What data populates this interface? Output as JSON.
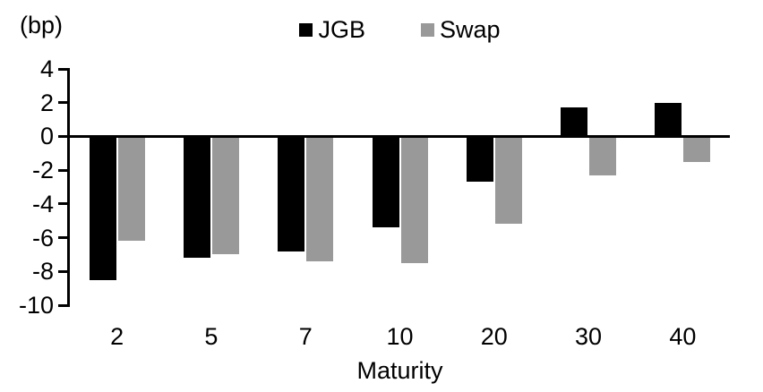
{
  "chart_data": {
    "type": "bar",
    "title": "",
    "unit_label": "(bp)",
    "xlabel": "Maturity",
    "ylabel": "",
    "categories": [
      "2",
      "5",
      "7",
      "10",
      "20",
      "30",
      "40"
    ],
    "series": [
      {
        "name": "JGB",
        "color": "#000000",
        "values": [
          -8.5,
          -7.2,
          -6.8,
          -5.4,
          -2.7,
          1.7,
          2.0
        ]
      },
      {
        "name": "Swap",
        "color": "#999999",
        "values": [
          -6.2,
          -7.0,
          -7.4,
          -7.5,
          -5.2,
          -2.3,
          -1.5
        ]
      }
    ],
    "ylim": [
      -10,
      4
    ],
    "yticks": [
      4,
      2,
      0,
      -2,
      -4,
      -6,
      -8,
      -10
    ],
    "grid": false,
    "legend_position": "top-center",
    "axis_color": "#000000",
    "background_color": "#ffffff"
  }
}
